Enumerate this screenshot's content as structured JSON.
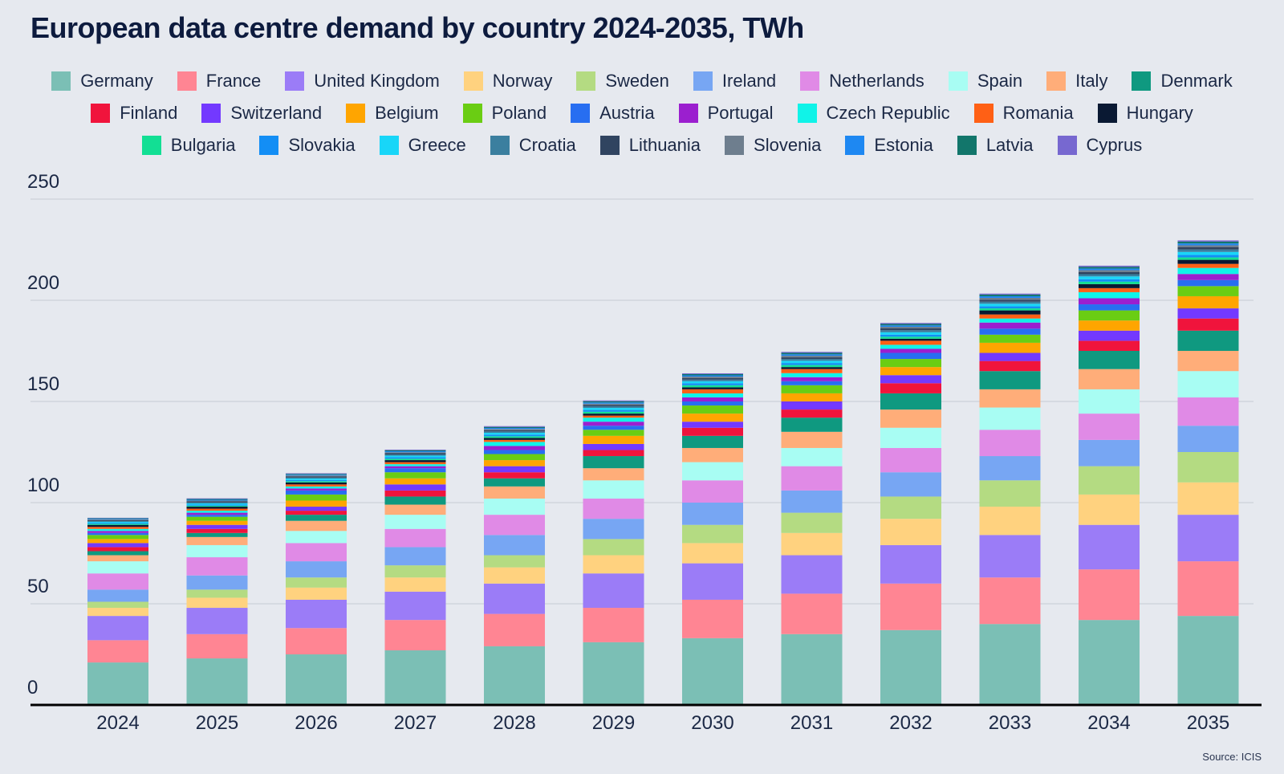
{
  "chart_data": {
    "type": "bar",
    "stacked": true,
    "title": "European data centre demand by country 2024-2035, TWh",
    "source": "Source: ICIS",
    "xlabel": "",
    "ylabel": "",
    "ylim": [
      0,
      250
    ],
    "yticks": [
      0,
      50,
      100,
      150,
      200,
      250
    ],
    "grid": true,
    "legend_position": "top",
    "categories": [
      "2024",
      "2025",
      "2026",
      "2027",
      "2028",
      "2029",
      "2030",
      "2031",
      "2032",
      "2033",
      "2034",
      "2035"
    ],
    "series": [
      {
        "name": "Germany",
        "color": "#7bbfb5",
        "values": [
          21,
          23,
          25,
          27,
          29,
          31,
          33,
          35,
          37,
          40,
          42,
          44
        ]
      },
      {
        "name": "France",
        "color": "#ff8593",
        "values": [
          11,
          12,
          13,
          15,
          16,
          17,
          19,
          20,
          23,
          23,
          25,
          27
        ]
      },
      {
        "name": "United Kingdom",
        "color": "#9b7cf7",
        "values": [
          12,
          13,
          14,
          14,
          15,
          17,
          18,
          19,
          19,
          21,
          22,
          23
        ]
      },
      {
        "name": "Norway",
        "color": "#ffd27f",
        "values": [
          4,
          5,
          6,
          7,
          8,
          9,
          10,
          11,
          13,
          14,
          15,
          16
        ]
      },
      {
        "name": "Sweden",
        "color": "#b4db82",
        "values": [
          3,
          4,
          5,
          6,
          6,
          8,
          9,
          10,
          11,
          13,
          14,
          15
        ]
      },
      {
        "name": "Ireland",
        "color": "#77a6f3",
        "values": [
          6,
          7,
          8,
          9,
          10,
          10,
          11,
          11,
          12,
          12,
          13,
          13
        ]
      },
      {
        "name": "Netherlands",
        "color": "#e08ae6",
        "values": [
          8,
          9,
          9,
          9,
          10,
          10,
          11,
          12,
          12,
          13,
          13,
          14
        ]
      },
      {
        "name": "Spain",
        "color": "#a8fdf3",
        "values": [
          6,
          6,
          6,
          7,
          8,
          9,
          9,
          9,
          10,
          11,
          12,
          13
        ]
      },
      {
        "name": "Italy",
        "color": "#ffad79",
        "values": [
          3,
          4,
          5,
          5,
          6,
          6,
          7,
          8,
          9,
          9,
          10,
          10
        ]
      },
      {
        "name": "Denmark",
        "color": "#0f9980",
        "values": [
          2,
          2,
          3,
          4,
          4,
          6,
          6,
          7,
          8,
          9,
          9,
          10
        ]
      },
      {
        "name": "Finland",
        "color": "#f0143c",
        "values": [
          2,
          2,
          2,
          3,
          3,
          3,
          4,
          4,
          5,
          5,
          5,
          6
        ]
      },
      {
        "name": "Switzerland",
        "color": "#7339ff",
        "values": [
          2,
          2,
          2,
          3,
          3,
          3,
          3,
          4,
          4,
          4,
          5,
          5
        ]
      },
      {
        "name": "Belgium",
        "color": "#ffa500",
        "values": [
          2,
          2,
          3,
          3,
          3,
          4,
          4,
          4,
          4,
          5,
          5,
          6
        ]
      },
      {
        "name": "Poland",
        "color": "#6acd13",
        "values": [
          2,
          2,
          3,
          3,
          3,
          3,
          4,
          4,
          4,
          4,
          5,
          5
        ]
      },
      {
        "name": "Austria",
        "color": "#276ef1",
        "values": [
          1,
          1,
          2,
          2,
          2,
          2,
          2,
          2,
          3,
          3,
          3,
          3
        ]
      },
      {
        "name": "Portugal",
        "color": "#9b1fcf",
        "values": [
          1,
          1,
          1,
          1,
          2,
          2,
          2,
          2,
          2,
          3,
          3,
          3
        ]
      },
      {
        "name": "Czech Republic",
        "color": "#10f3e8",
        "values": [
          1,
          1,
          1,
          1,
          2,
          2,
          2,
          2,
          2,
          2,
          3,
          3
        ]
      },
      {
        "name": "Romania",
        "color": "#ff6015",
        "values": [
          1,
          1,
          1,
          1,
          1,
          1,
          2,
          2,
          2,
          2,
          2,
          2
        ]
      },
      {
        "name": "Hungary",
        "color": "#0a1933",
        "values": [
          1,
          1,
          1,
          1,
          1,
          1,
          1,
          1,
          1,
          2,
          2,
          2
        ]
      },
      {
        "name": "Bulgaria",
        "color": "#12df94",
        "values": [
          0.5,
          0.5,
          0.6,
          0.7,
          0.8,
          0.9,
          1,
          1,
          1,
          1,
          1.2,
          1.2
        ]
      },
      {
        "name": "Slovakia",
        "color": "#138ef5",
        "values": [
          0.5,
          0.5,
          0.6,
          0.7,
          0.8,
          0.9,
          1,
          1,
          1,
          1,
          1.2,
          1.2
        ]
      },
      {
        "name": "Greece",
        "color": "#18d6f8",
        "values": [
          0.5,
          0.6,
          0.7,
          0.8,
          0.9,
          1,
          1,
          1.1,
          1.2,
          1.3,
          1.4,
          1.5
        ]
      },
      {
        "name": "Croatia",
        "color": "#3b7f9f",
        "values": [
          0.4,
          0.5,
          0.5,
          0.6,
          0.7,
          0.8,
          0.8,
          0.9,
          1,
          1,
          1.1,
          1.2
        ]
      },
      {
        "name": "Lithuania",
        "color": "#304460",
        "values": [
          0.4,
          0.5,
          0.5,
          0.6,
          0.6,
          0.7,
          0.8,
          0.8,
          0.9,
          1,
          1,
          1.1
        ]
      },
      {
        "name": "Slovenia",
        "color": "#6e7e8e",
        "values": [
          0.4,
          0.4,
          0.5,
          0.5,
          0.6,
          0.6,
          0.7,
          0.8,
          0.8,
          0.9,
          1,
          1
        ]
      },
      {
        "name": "Estonia",
        "color": "#1e88f2",
        "values": [
          0.3,
          0.4,
          0.4,
          0.5,
          0.5,
          0.6,
          0.6,
          0.7,
          0.7,
          0.8,
          0.8,
          0.9
        ]
      },
      {
        "name": "Latvia",
        "color": "#12766b",
        "values": [
          0.3,
          0.4,
          0.4,
          0.5,
          0.5,
          0.6,
          0.6,
          0.7,
          0.7,
          0.8,
          0.8,
          0.9
        ]
      },
      {
        "name": "Cyprus",
        "color": "#7768d0",
        "values": [
          0.2,
          0.3,
          0.3,
          0.3,
          0.4,
          0.4,
          0.4,
          0.5,
          0.5,
          0.5,
          0.6,
          0.6
        ]
      }
    ]
  }
}
